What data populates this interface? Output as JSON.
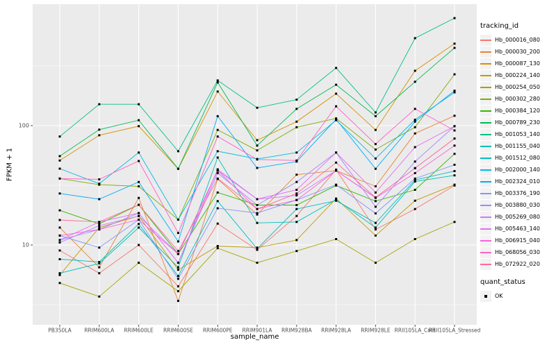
{
  "chart_data": {
    "type": "line",
    "title": "",
    "xlabel": "sample_name",
    "ylabel": "FPKM + 1",
    "y_scale": "log10",
    "y_ticks": [
      10,
      100
    ],
    "y_minor_ticks": [
      3.162,
      31.62,
      316.2
    ],
    "ylim": [
      2.1,
      1050
    ],
    "grid": true,
    "panel_bg": "#EBEBEB",
    "grid_color": "#FFFFFF",
    "tick_text_color": "#4D4D4D",
    "point": {
      "shape": "square",
      "color": "#000000",
      "size": 3
    },
    "legend": {
      "position": "right",
      "color_title": "tracking_id",
      "shape_title": "quant_status",
      "shape_items": [
        {
          "label": "OK",
          "shape": "square",
          "color": "#000000"
        }
      ]
    },
    "categories": [
      "PB350LA",
      "RRIM600LA",
      "RRIM600LE",
      "RRIM600SE",
      "RRIM600PE",
      "RRIM901LA",
      "RRIM928BA",
      "RRIM928LA",
      "RRIM928LE",
      "RRII105LA_Cold",
      "RRII105LA_Stressed"
    ],
    "series": [
      {
        "name": "Hb_000016_080",
        "color": "#F8766D",
        "values": [
          9.0,
          5.8,
          10.0,
          4.5,
          15.1,
          9.1,
          17.5,
          42.8,
          13.5,
          20.0,
          31.5
        ]
      },
      {
        "name": "Hb_000030_200",
        "color": "#EA8331",
        "values": [
          14.0,
          6.5,
          24.8,
          3.4,
          35.7,
          18.0,
          38.8,
          42.0,
          31.0,
          86.0,
          121.0
        ]
      },
      {
        "name": "Hb_000087_130",
        "color": "#D89000",
        "values": [
          51.0,
          83.0,
          99.0,
          43.5,
          193.0,
          75.5,
          108.0,
          185.0,
          92.0,
          288.0,
          486.0
        ]
      },
      {
        "name": "Hb_000224_140",
        "color": "#C09B00",
        "values": [
          5.6,
          14.0,
          17.5,
          6.2,
          9.8,
          9.5,
          11.0,
          24.5,
          12.0,
          23.5,
          32.0
        ]
      },
      {
        "name": "Hb_000254_050",
        "color": "#A3A500",
        "values": [
          4.8,
          3.7,
          7.1,
          4.1,
          9.4,
          7.1,
          8.9,
          11.2,
          7.1,
          11.2,
          15.6
        ]
      },
      {
        "name": "Hb_000302_280",
        "color": "#7CAE00",
        "values": [
          36.0,
          32.0,
          31.0,
          16.3,
          92.0,
          62.0,
          97.0,
          115.0,
          63.0,
          97.0,
          269.0
        ]
      },
      {
        "name": "Hb_000384_120",
        "color": "#39B600",
        "values": [
          19.5,
          15.0,
          21.7,
          8.4,
          27.5,
          21.6,
          21.6,
          31.5,
          23.3,
          29.0,
          58.0
        ]
      },
      {
        "name": "Hb_000789_230",
        "color": "#00BB4E",
        "values": [
          55.5,
          92.5,
          111.0,
          43.5,
          230.0,
          68.0,
          138.0,
          220.0,
          120.0,
          233.0,
          448.0
        ]
      },
      {
        "name": "Hb_001053_140",
        "color": "#00C087",
        "values": [
          81.0,
          151.0,
          151.0,
          61.0,
          239.0,
          141.0,
          165.0,
          304.0,
          129.0,
          540.0,
          795.0
        ]
      },
      {
        "name": "Hb_001155_040",
        "color": "#00C0B4",
        "values": [
          5.8,
          7.0,
          14.0,
          6.5,
          54.0,
          15.3,
          15.6,
          24.0,
          14.0,
          34.0,
          38.3
        ]
      },
      {
        "name": "Hb_001512_080",
        "color": "#00BFC4",
        "values": [
          7.6,
          7.2,
          15.0,
          5.5,
          23.3,
          9.3,
          20.0,
          23.5,
          15.3,
          35.0,
          41.6
        ]
      },
      {
        "name": "Hb_002000_140",
        "color": "#00B8E7",
        "values": [
          43.6,
          32.6,
          59.5,
          16.3,
          61.0,
          52.5,
          59.5,
          111.0,
          53.0,
          112.0,
          190.0
        ]
      },
      {
        "name": "Hb_002324_010",
        "color": "#00ACFC",
        "values": [
          27.0,
          24.2,
          33.7,
          10.7,
          120.0,
          44.2,
          50.0,
          113.0,
          43.5,
          108.0,
          196.0
        ]
      },
      {
        "name": "Hb_003376_190",
        "color": "#8494FF",
        "values": [
          12.0,
          9.5,
          16.3,
          5.2,
          20.3,
          18.5,
          23.8,
          32.0,
          18.4,
          36.0,
          47.0
        ]
      },
      {
        "name": "Hb_003880_030",
        "color": "#A385FF",
        "values": [
          11.0,
          13.5,
          18.5,
          7.1,
          40.0,
          21.6,
          33.7,
          59.5,
          20.9,
          50.0,
          99.0
        ]
      },
      {
        "name": "Hb_005269_080",
        "color": "#C77CFF",
        "values": [
          10.5,
          14.5,
          17.5,
          8.4,
          42.0,
          24.2,
          26.0,
          42.0,
          25.0,
          44.0,
          78.0
        ]
      },
      {
        "name": "Hb_005463_140",
        "color": "#E76BF3",
        "values": [
          11.0,
          15.6,
          18.5,
          7.1,
          43.0,
          24.2,
          29.0,
          59.5,
          27.5,
          66.0,
          99.0
        ]
      },
      {
        "name": "Hb_006915_040",
        "color": "#FA62DB",
        "values": [
          12.0,
          13.5,
          16.3,
          8.4,
          42.0,
          20.0,
          23.8,
          42.0,
          24.8,
          40.0,
          68.0
        ]
      },
      {
        "name": "Hb_068056_030",
        "color": "#FF61C2",
        "values": [
          36.0,
          35.5,
          50.5,
          12.6,
          81.0,
          52.0,
          51.0,
          145.0,
          70.0,
          138.0,
          91.0
        ]
      },
      {
        "name": "Hb_072922_020",
        "color": "#FF6A99",
        "values": [
          16.2,
          15.6,
          21.7,
          8.9,
          36.0,
          20.0,
          27.0,
          49.0,
          25.0,
          44.0,
          78.0
        ]
      }
    ]
  }
}
